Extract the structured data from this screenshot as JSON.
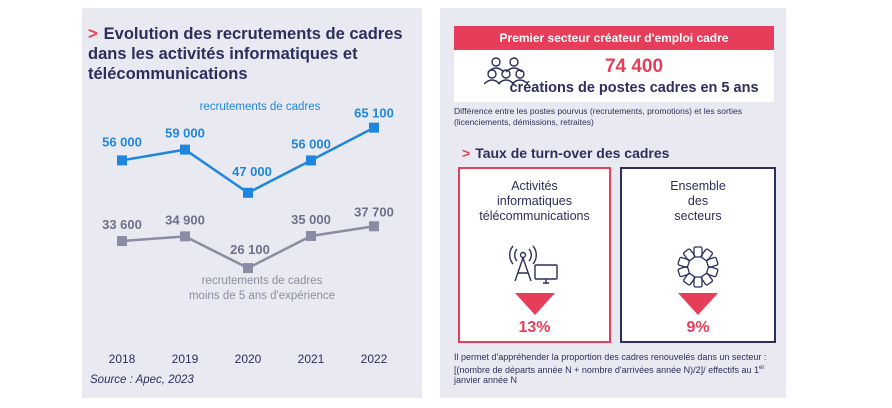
{
  "left": {
    "title": "Evolution des recrutements de cadres dans les activités informatiques et télécommunications",
    "source": "Source : Apec, 2023"
  },
  "chart_data": {
    "type": "line",
    "title": "Evolution des recrutements de cadres dans les activités informatiques et télécommunications",
    "x": [
      "2018",
      "2019",
      "2020",
      "2021",
      "2022"
    ],
    "ylim": [
      20000,
      70000
    ],
    "grid": false,
    "series": [
      {
        "name": "recrutements de cadres",
        "color": "#1f86e0",
        "values": [
          56000,
          59000,
          47000,
          56000,
          65100
        ],
        "labels": [
          "56 000",
          "59 000",
          "47 000",
          "56 000",
          "65 100"
        ]
      },
      {
        "name": "recrutements de cadres moins de 5 ans d'expérience",
        "name_lines": [
          "recrutements de cadres",
          "moins de 5 ans d'expérience"
        ],
        "color": "#8a8ca3",
        "values": [
          33600,
          34900,
          26100,
          35000,
          37700
        ],
        "labels": [
          "33 600",
          "34 900",
          "26 100",
          "35 000",
          "37 700"
        ]
      }
    ]
  },
  "right": {
    "banner": "Premier secteur créateur d'emploi cadre",
    "big_number": "74 400",
    "big_sub": "créations de postes cadres en 5 ans",
    "note": "Différence entre les postes pourvus (recrutements, promotions) et les sorties (licenciements, démissions, retraites)",
    "turnover_title": "Taux de turn-over des cadres",
    "card_it": {
      "label_lines": [
        "Activités",
        "informatiques",
        "télécommunications"
      ],
      "value": "13%",
      "icon": "antenna-screen-icon"
    },
    "card_all": {
      "label_lines": [
        "Ensemble",
        "des",
        "secteurs"
      ],
      "value": "9%",
      "icon": "circle-of-blocks-icon"
    },
    "definition_a": "Il permet d'appréhender la proportion des cadres renouvelés dans un secteur : [(nombre de départs année N + nombre d'arrivées année N)/2]/ effectifs au 1",
    "definition_sup": "er",
    "definition_b": " janvier année N"
  },
  "colors": {
    "accent": "#e63d5a",
    "navy": "#2c2f5b",
    "blue": "#1f86e0",
    "grey": "#8a8ca3",
    "panel": "#e9eaf1"
  }
}
